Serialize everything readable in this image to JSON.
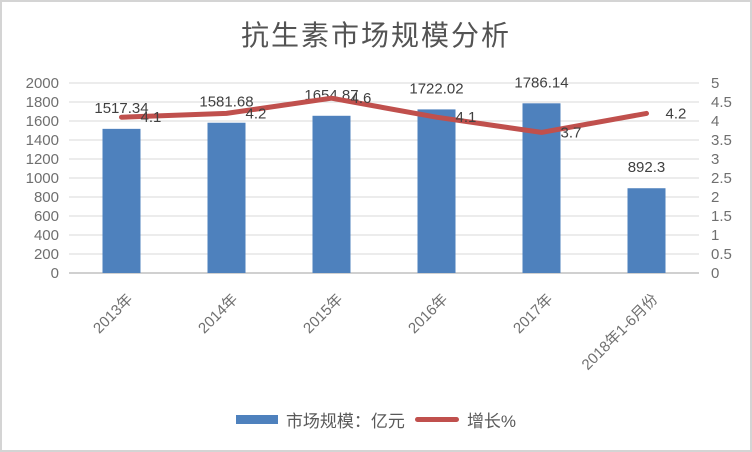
{
  "chart_data": {
    "type": "combo",
    "title": "抗生素市场规模分析",
    "categories": [
      "2013年",
      "2014年",
      "2015年",
      "2016年",
      "2017年",
      "2018年1-6月份"
    ],
    "series": [
      {
        "name": "市场规模：亿元",
        "type": "bar",
        "axis": "left",
        "color": "#4E81BD",
        "values": [
          1517.34,
          1581.68,
          1654.87,
          1722.02,
          1786.14,
          892.3
        ]
      },
      {
        "name": "增长%",
        "type": "line",
        "axis": "right",
        "color": "#C0504D",
        "values": [
          4.1,
          4.2,
          4.6,
          4.1,
          3.7,
          4.2
        ]
      }
    ],
    "left_axis": {
      "min": 0,
      "max": 2000,
      "step": 200
    },
    "right_axis": {
      "min": 0,
      "max": 5,
      "step": 0.5
    },
    "grid": true,
    "legend_position": "bottom"
  },
  "colors": {
    "grid": "#D9D9D9",
    "axis_line": "#C0C0C0",
    "tick_text": "#6F6F6F",
    "category_text": "#6F6F6F",
    "data_label_text": "#404040",
    "title_text": "#535353",
    "legend_text": "#595959",
    "frame_border": "#D4D4D4",
    "background": "#FFFFFF"
  }
}
